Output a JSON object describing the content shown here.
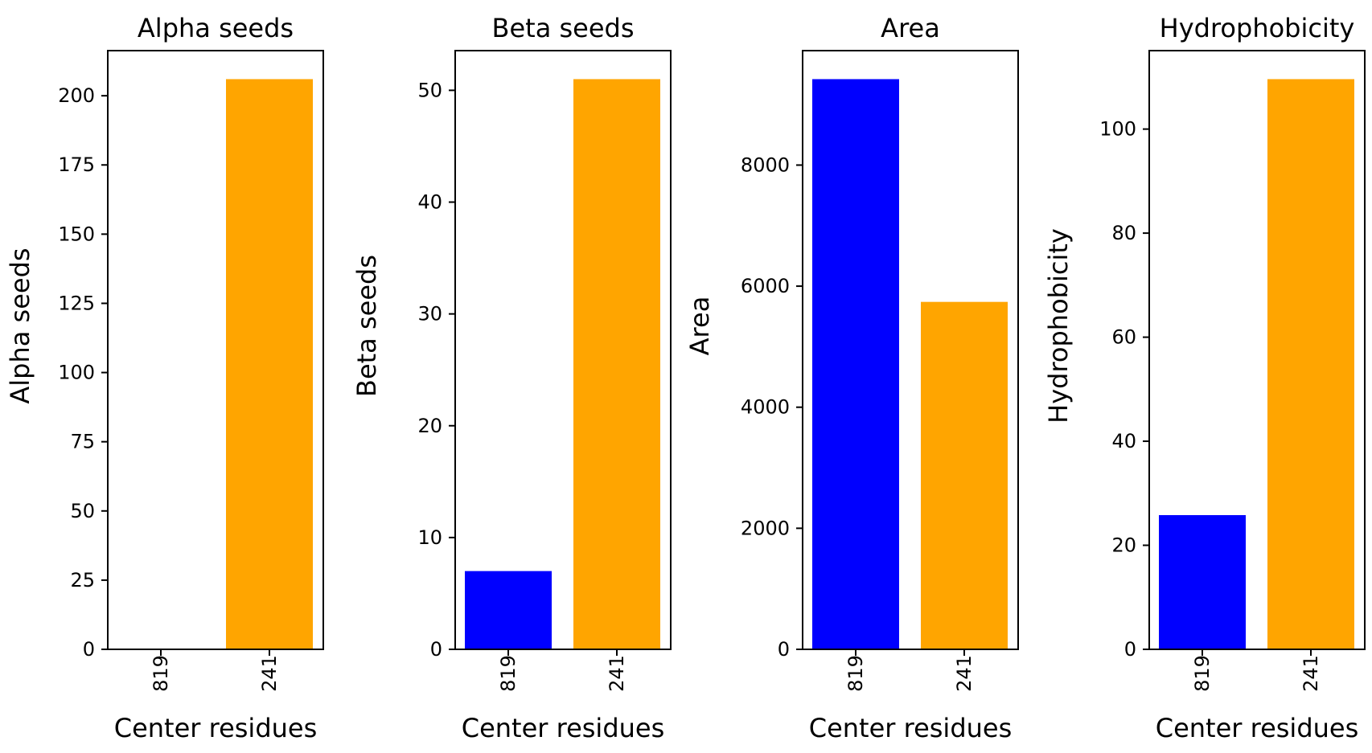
{
  "chart_data": [
    {
      "type": "bar",
      "title": "Alpha seeds",
      "xlabel": "Center residues",
      "ylabel": "Alpha seeds",
      "categories": [
        "819",
        "241"
      ],
      "values": [
        0,
        206
      ],
      "colors": [
        "#0000ff",
        "#ffa500"
      ],
      "ylim": [
        0,
        216.3
      ],
      "yticks": [
        0,
        25,
        50,
        75,
        100,
        125,
        150,
        175,
        200
      ],
      "grid": false
    },
    {
      "type": "bar",
      "title": "Beta seeds",
      "xlabel": "Center residues",
      "ylabel": "Beta seeds",
      "categories": [
        "819",
        "241"
      ],
      "values": [
        7,
        51
      ],
      "colors": [
        "#0000ff",
        "#ffa500"
      ],
      "ylim": [
        0,
        53.55
      ],
      "yticks": [
        0,
        10,
        20,
        30,
        40,
        50
      ],
      "grid": false
    },
    {
      "type": "bar",
      "title": "Area",
      "xlabel": "Center residues",
      "ylabel": "Area",
      "categories": [
        "819",
        "241"
      ],
      "values": [
        9420,
        5740
      ],
      "colors": [
        "#0000ff",
        "#ffa500"
      ],
      "ylim": [
        0,
        9891
      ],
      "yticks": [
        0,
        2000,
        4000,
        6000,
        8000
      ],
      "grid": false
    },
    {
      "type": "bar",
      "title": "Hydrophobicity",
      "xlabel": "Center residues",
      "ylabel": "Hydrophobicity",
      "categories": [
        "819",
        "241"
      ],
      "values": [
        25.8,
        109.6
      ],
      "colors": [
        "#0000ff",
        "#ffa500"
      ],
      "ylim": [
        0,
        115.08
      ],
      "yticks": [
        0,
        20,
        40,
        60,
        80,
        100
      ],
      "grid": false
    }
  ]
}
